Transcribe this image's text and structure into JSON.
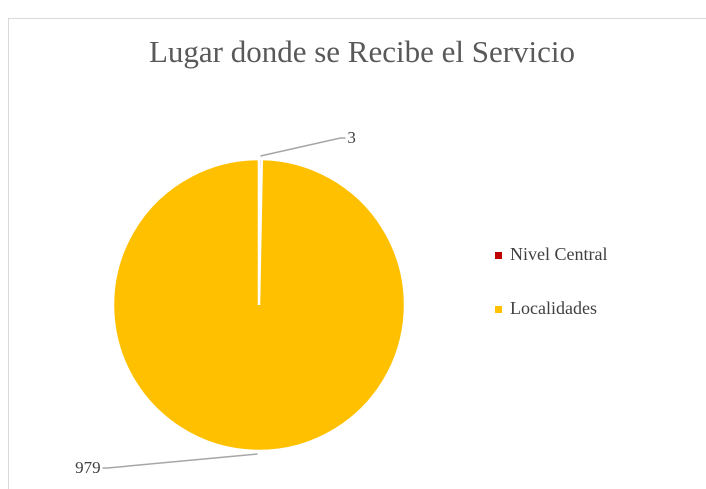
{
  "chart_data": {
    "type": "pie",
    "title": "Lugar donde se Recibe el Servicio",
    "categories": [
      "Nivel Central",
      "Localidades"
    ],
    "values": [
      3,
      979
    ],
    "colors": [
      "#c00000",
      "#ffc000"
    ],
    "legend": "right"
  }
}
